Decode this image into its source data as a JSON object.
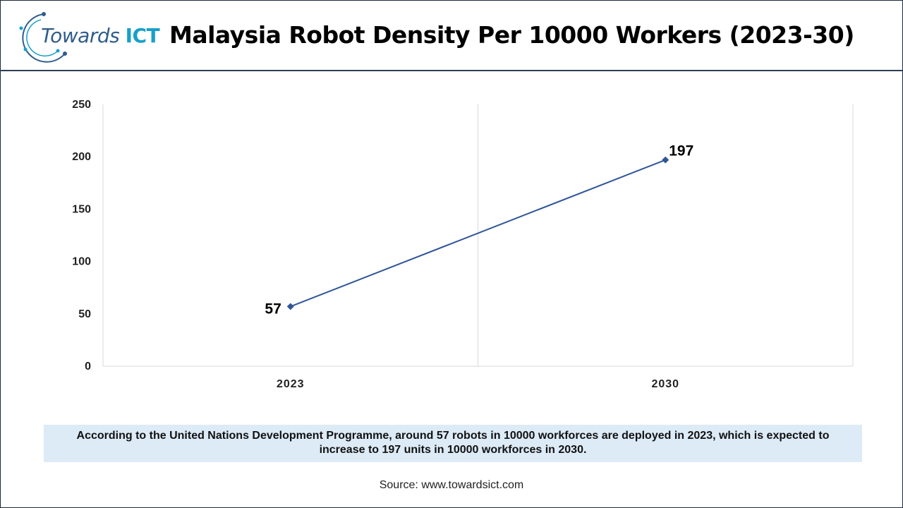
{
  "header": {
    "logo_text_1": "Towards",
    "logo_text_2": "ICT",
    "title": "Malaysia Robot Density Per 10000 Workers (2023-30)"
  },
  "chart_data": {
    "type": "line",
    "title": "Malaysia Robot Density Per 10000 Workers (2023-30)",
    "categories": [
      "2023",
      "2030"
    ],
    "series": [
      {
        "values": [
          57,
          197
        ],
        "color": "#2f5597"
      }
    ],
    "data_labels": [
      "57",
      "197"
    ],
    "yticks": [
      "0",
      "50",
      "100",
      "150",
      "200",
      "250"
    ],
    "ylim": [
      0,
      250
    ],
    "grid": "vertical",
    "legend": "none"
  },
  "caption": "According to the United Nations Development Programme, around 57 robots in 10000 workforces are deployed in 2023, which is expected to increase to 197 units in 10000 workforces in 2030.",
  "source": "Source: www.towardsict.com",
  "colors": {
    "line": "#2f5597",
    "caption_bg": "#ddebf7",
    "logo_blue": "#2f5d8c",
    "logo_cyan": "#18a0c8"
  }
}
